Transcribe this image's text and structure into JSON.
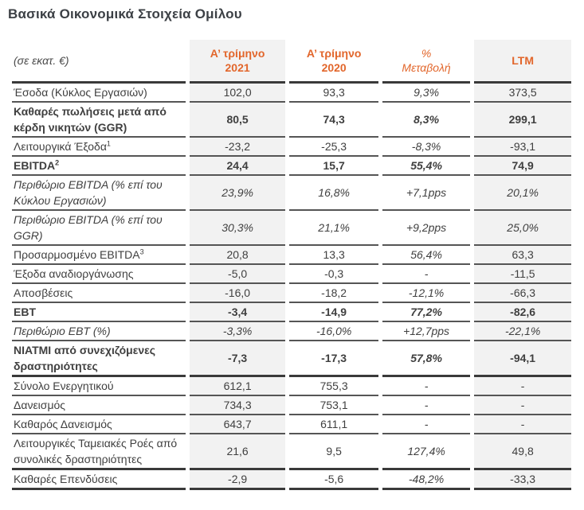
{
  "title": "Βασικά Οικονομικά Στοιχεία Ομίλου",
  "colors": {
    "accent_orange": "#e2662b",
    "shaded_column_bg": "#f2f2f2",
    "rule_dark": "#3a3a3a",
    "rule_gray": "#555555",
    "text": "#3f3f3f"
  },
  "table": {
    "header": {
      "unit_label": "(σε εκατ. €)",
      "col_q1_2021": {
        "line1": "Α’ τρίμηνο",
        "line2": "2021"
      },
      "col_q1_2020": {
        "line1": "Α’ τρίμηνο",
        "line2": "2020"
      },
      "col_change": {
        "line1": "%",
        "line2": "Μεταβολή"
      },
      "col_ltm": "LTM"
    },
    "rows": [
      {
        "label": "Έσοδα (Κύκλος Εργασιών)",
        "sup": "",
        "q1_2021": "102,0",
        "q1_2020": "93,3",
        "change": "9,3%",
        "ltm": "373,5",
        "style": "normal",
        "thick_bottom": false
      },
      {
        "label": "Καθαρές πωλήσεις μετά από κέρδη νικητών (GGR)",
        "sup": "",
        "q1_2021": "80,5",
        "q1_2020": "74,3",
        "change": "8,3%",
        "ltm": "299,1",
        "style": "bold",
        "thick_bottom": false
      },
      {
        "label": "Λειτουργικά Έξοδα",
        "sup": "1",
        "q1_2021": "-23,2",
        "q1_2020": "-25,3",
        "change": "-8,3%",
        "ltm": "-93,1",
        "style": "normal",
        "thick_bottom": false
      },
      {
        "label": "EBITDA",
        "sup": "2",
        "q1_2021": "24,4",
        "q1_2020": "15,7",
        "change": "55,4%",
        "ltm": "74,9",
        "style": "bold",
        "thick_bottom": false
      },
      {
        "label": "Περιθώριο EBITDA (% επί του Κύκλου Εργασιών)",
        "sup": "",
        "q1_2021": "23,9%",
        "q1_2020": "16,8%",
        "change": "+7,1pps",
        "ltm": "20,1%",
        "style": "italic",
        "thick_bottom": false
      },
      {
        "label": "Περιθώριο EBITDA (% επί του GGR)",
        "sup": "",
        "q1_2021": "30,3%",
        "q1_2020": "21,1%",
        "change": "+9,2pps",
        "ltm": "25,0%",
        "style": "italic",
        "thick_bottom": false
      },
      {
        "label": "Προσαρμοσμένο EBITDA",
        "sup": "3",
        "q1_2021": "20,8",
        "q1_2020": "13,3",
        "change": "56,4%",
        "ltm": "63,3",
        "style": "normal",
        "thick_bottom": false
      },
      {
        "label": "Έξοδα αναδιοργάνωσης",
        "sup": "",
        "q1_2021": "-5,0",
        "q1_2020": "-0,3",
        "change": "-",
        "ltm": "-11,5",
        "style": "normal",
        "thick_bottom": false
      },
      {
        "label": "Αποσβέσεις",
        "sup": "",
        "q1_2021": "-16,0",
        "q1_2020": "-18,2",
        "change": "-12,1%",
        "ltm": "-66,3",
        "style": "normal",
        "thick_bottom": false
      },
      {
        "label": "EBT",
        "sup": "",
        "q1_2021": "-3,4",
        "q1_2020": "-14,9",
        "change": "77,2%",
        "ltm": "-82,6",
        "style": "bold",
        "thick_bottom": false
      },
      {
        "label": "Περιθώριο EBT (%)",
        "sup": "",
        "q1_2021": "-3,3%",
        "q1_2020": "-16,0%",
        "change": "+12,7pps",
        "ltm": "-22,1%",
        "style": "italic",
        "thick_bottom": false
      },
      {
        "label": "NIATMI από συνεχιζόμενες δραστηριότητες",
        "sup": "",
        "q1_2021": "-7,3",
        "q1_2020": "-17,3",
        "change": "57,8%",
        "ltm": "-94,1",
        "style": "bold",
        "thick_bottom": true
      },
      {
        "label": "Σύνολο Ενεργητικού",
        "sup": "",
        "q1_2021": "612,1",
        "q1_2020": "755,3",
        "change": "-",
        "ltm": "-",
        "style": "normal",
        "thick_bottom": false
      },
      {
        "label": "Δανεισμός",
        "sup": "",
        "q1_2021": "734,3",
        "q1_2020": "753,1",
        "change": "-",
        "ltm": "-",
        "style": "normal",
        "thick_bottom": false
      },
      {
        "label": "Καθαρός Δανεισμός",
        "sup": "",
        "q1_2021": "643,7",
        "q1_2020": "611,1",
        "change": "-",
        "ltm": "-",
        "style": "normal",
        "thick_bottom": false
      },
      {
        "label": "Λειτουργικές Ταμειακές Ροές από συνολικές δραστηριότητες",
        "sup": "",
        "q1_2021": "21,6",
        "q1_2020": "9,5",
        "change": "127,4%",
        "ltm": "49,8",
        "style": "normal",
        "thick_bottom": true
      },
      {
        "label": "Καθαρές Επενδύσεις",
        "sup": "",
        "q1_2021": "-2,9",
        "q1_2020": "-5,6",
        "change": "-48,2%",
        "ltm": "-33,3",
        "style": "normal",
        "thick_bottom": true
      }
    ]
  }
}
